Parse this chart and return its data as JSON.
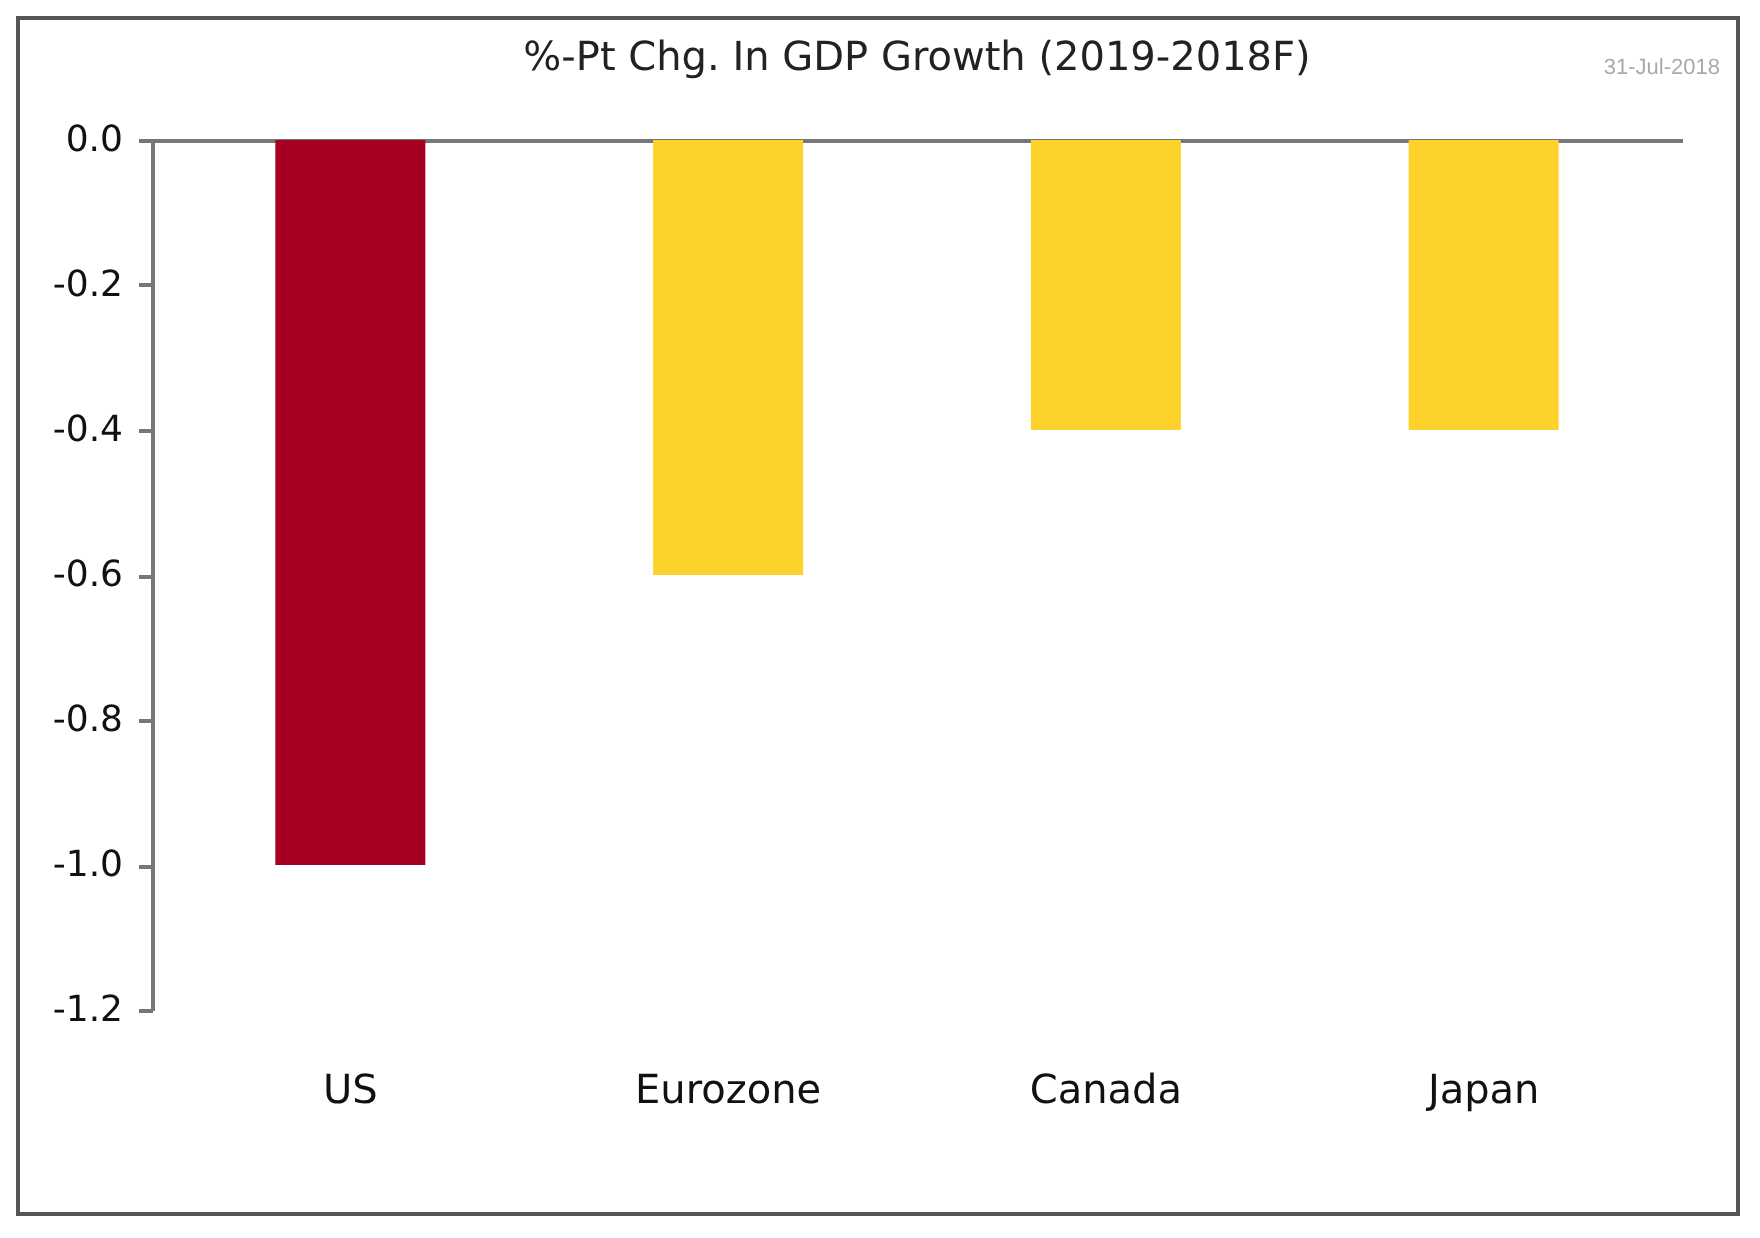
{
  "chart_data": {
    "type": "bar",
    "title": "%-Pt Chg. In GDP Growth (2019-2018F)",
    "annotations": [
      "31-Jul-2018"
    ],
    "categories": [
      "US",
      "Eurozone",
      "Canada",
      "Japan"
    ],
    "values": [
      -1.0,
      -0.6,
      -0.4,
      -0.4
    ],
    "colors": [
      "#a50021",
      "#fdd22a",
      "#fdd22a",
      "#fdd22a"
    ],
    "ylim": [
      -1.2,
      0
    ],
    "yticks": [
      {
        "value": -1.2,
        "label": "-1.2"
      },
      {
        "value": -1.0,
        "label": "-1.0"
      },
      {
        "value": -0.8,
        "label": "-0.8"
      },
      {
        "value": -0.6,
        "label": "-0.6"
      },
      {
        "value": -0.4,
        "label": "-0.4"
      },
      {
        "value": -0.2,
        "label": "-0.2"
      },
      {
        "value": 0,
        "label": "0.0"
      }
    ],
    "grid": false,
    "legend": false
  }
}
